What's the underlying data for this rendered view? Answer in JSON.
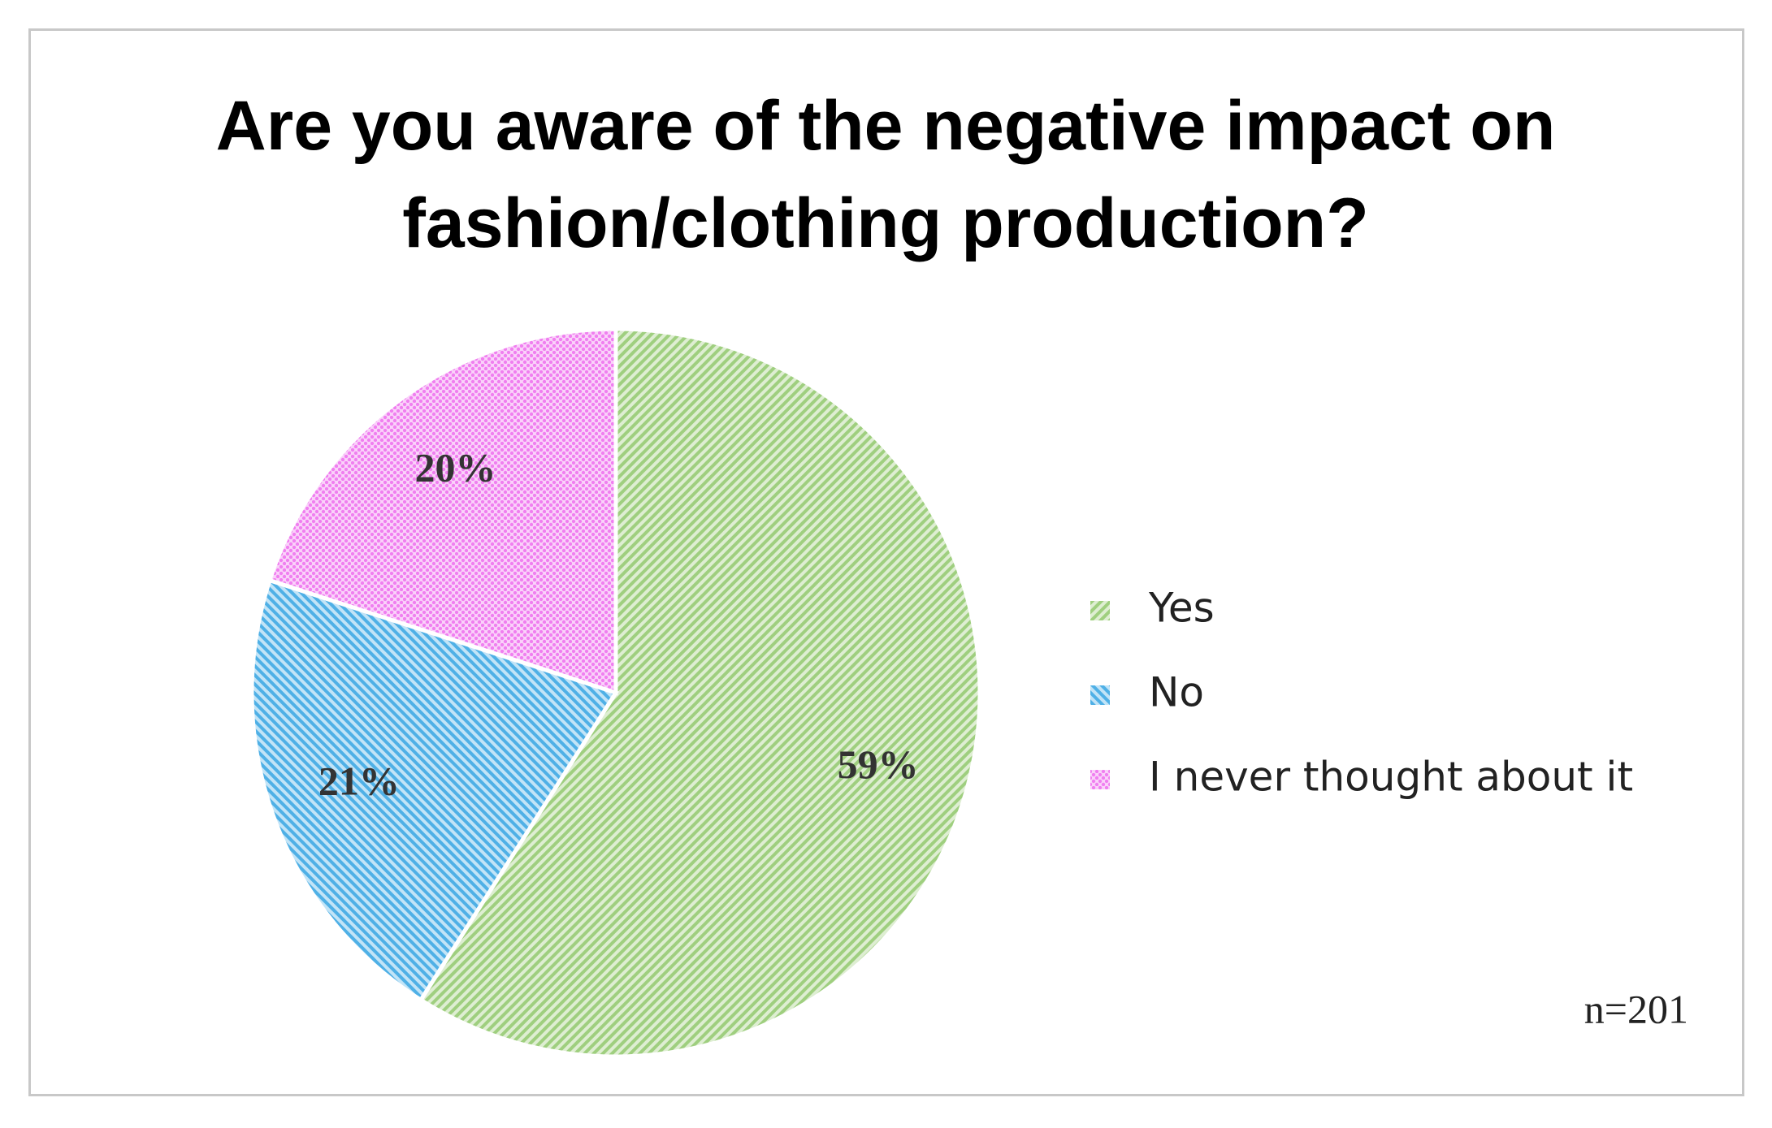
{
  "chart_data": {
    "type": "pie",
    "title": "Are you aware of the negative impact on fashion/clothing production?",
    "categories": [
      "Yes",
      "No",
      "I never thought about it"
    ],
    "values": [
      59,
      21,
      20
    ],
    "value_labels": [
      "59%",
      "21%",
      "20%"
    ],
    "colors": [
      "#9fcf7f",
      "#4fb0e6",
      "#f07ff0"
    ],
    "legend": "right",
    "annotation": "n=201"
  }
}
